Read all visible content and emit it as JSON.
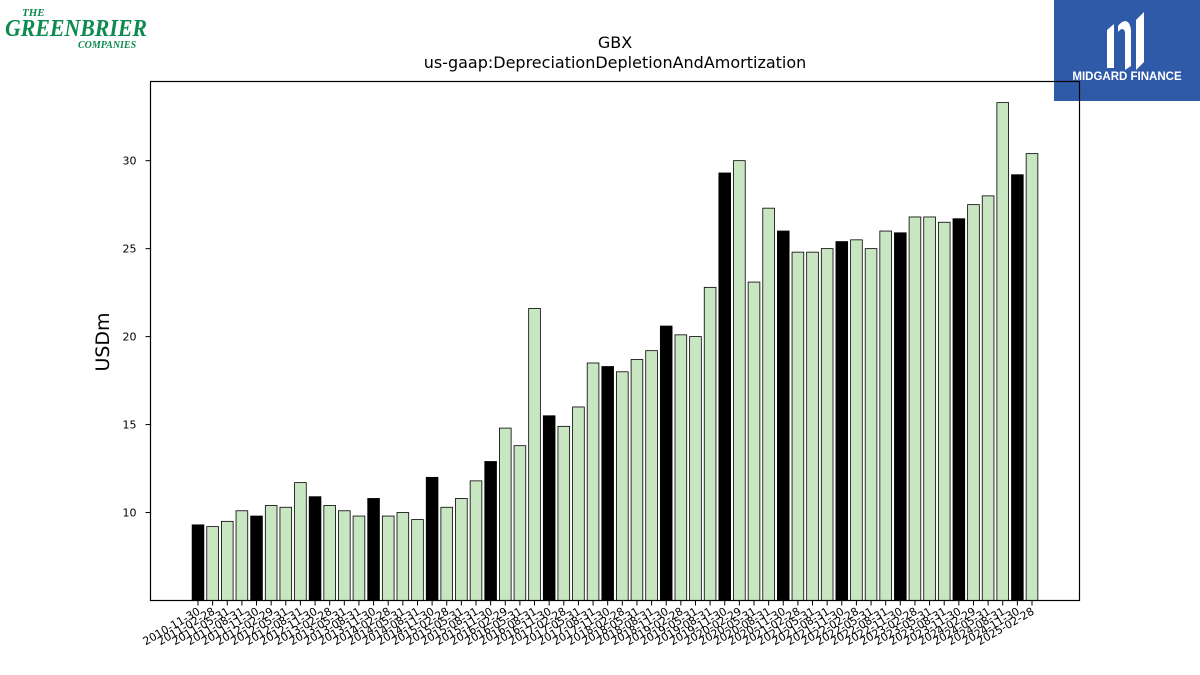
{
  "logos": {
    "left": {
      "line1": "THE",
      "line2": "GREENBRIER",
      "line3": "COMPANIES",
      "color": "#0e8a4f"
    },
    "right": {
      "text": "MIDGARD FINANCE",
      "bg": "#2f5aa8"
    }
  },
  "chart_data": {
    "type": "bar",
    "title": "GBX",
    "subtitle": "us-gaap:DepreciationDepletionAndAmortization",
    "xlabel": "",
    "ylabel": "USDm",
    "ylim": [
      5,
      34.5
    ],
    "yticks": [
      10,
      15,
      20,
      25,
      30
    ],
    "grid": false,
    "colors": {
      "annual": "#000000",
      "quarter": "#c8e6c2",
      "edge": "#000000"
    },
    "categories": [
      "2010-11-30",
      "2011-02-28",
      "2011-05-31",
      "2011-08-31",
      "2011-11-30",
      "2012-02-29",
      "2012-05-31",
      "2012-08-31",
      "2012-11-30",
      "2013-02-28",
      "2013-05-31",
      "2013-08-31",
      "2013-11-30",
      "2014-02-28",
      "2014-05-31",
      "2014-08-31",
      "2014-11-30",
      "2015-02-28",
      "2015-05-31",
      "2015-08-31",
      "2015-11-30",
      "2016-02-29",
      "2016-05-31",
      "2016-08-31",
      "2016-11-30",
      "2017-02-28",
      "2017-05-31",
      "2017-08-31",
      "2017-11-30",
      "2018-02-28",
      "2018-05-31",
      "2018-08-31",
      "2018-11-30",
      "2019-02-28",
      "2019-05-31",
      "2019-08-31",
      "2019-11-30",
      "2020-02-29",
      "2020-05-31",
      "2020-08-31",
      "2020-11-30",
      "2021-02-28",
      "2021-05-31",
      "2021-08-31",
      "2021-11-30",
      "2022-02-28",
      "2022-05-31",
      "2022-08-31",
      "2022-11-30",
      "2023-02-28",
      "2023-05-31",
      "2023-08-31",
      "2023-11-30",
      "2024-02-29",
      "2024-05-31",
      "2024-08-31",
      "2024-11-30",
      "2025-02-28"
    ],
    "values": [
      9.3,
      9.2,
      9.5,
      10.1,
      9.8,
      10.4,
      10.3,
      11.7,
      10.9,
      10.4,
      10.1,
      9.8,
      10.8,
      9.8,
      10.0,
      9.6,
      12.0,
      10.3,
      10.8,
      11.8,
      12.9,
      14.8,
      13.8,
      21.6,
      15.5,
      14.9,
      16.0,
      18.5,
      18.3,
      18.0,
      18.7,
      19.2,
      20.6,
      20.1,
      20.0,
      22.8,
      29.3,
      30.0,
      23.1,
      27.3,
      26.0,
      24.8,
      24.8,
      25.0,
      25.4,
      25.5,
      25.0,
      26.0,
      25.9,
      26.8,
      26.8,
      26.5,
      26.7,
      27.5,
      28.0,
      33.3,
      29.2,
      30.4
    ],
    "annual_flags": [
      1,
      0,
      0,
      0,
      1,
      0,
      0,
      0,
      1,
      0,
      0,
      0,
      1,
      0,
      0,
      0,
      1,
      0,
      0,
      0,
      1,
      0,
      0,
      0,
      1,
      0,
      0,
      0,
      1,
      0,
      0,
      0,
      1,
      0,
      0,
      0,
      1,
      0,
      0,
      0,
      1,
      0,
      0,
      0,
      1,
      0,
      0,
      0,
      1,
      0,
      0,
      0,
      1,
      0,
      0,
      0,
      1,
      0
    ]
  }
}
